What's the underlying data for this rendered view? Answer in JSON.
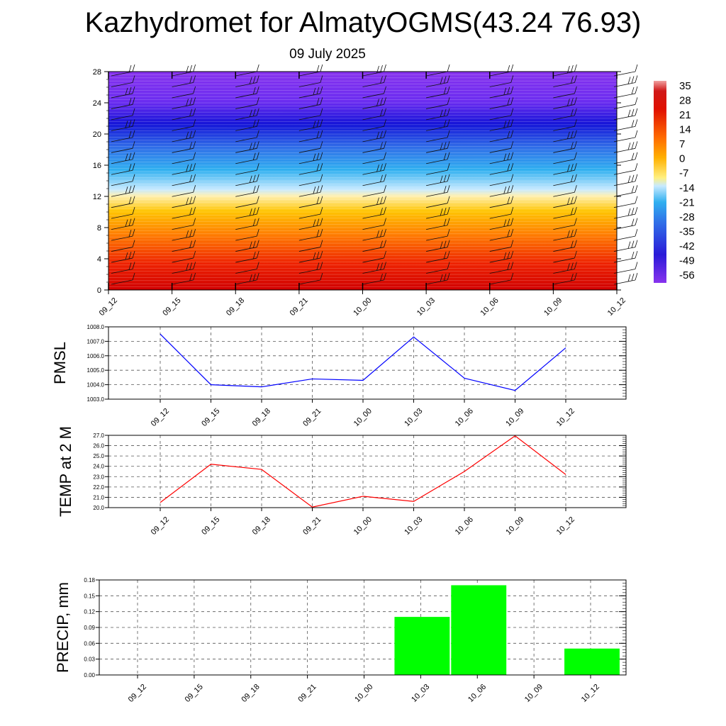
{
  "header": {
    "title": "Kazhydromet for AlmatyOGMS(43.24 76.93)",
    "subtitle": "09 July 2025"
  },
  "colors": {
    "pmsl_line": "#0000ff",
    "temp_line": "#ff0000",
    "precip_bar": "#00ff00"
  },
  "chart_data": [
    {
      "type": "heatmap",
      "title": "",
      "x": [
        "09_12",
        "09_15",
        "09_18",
        "09_21",
        "10_00",
        "10_03",
        "10_06",
        "10_09",
        "10_12"
      ],
      "ylim": [
        0,
        28
      ],
      "yticks": [
        0,
        4,
        8,
        12,
        16,
        20,
        24,
        28
      ],
      "colorbar": {
        "labels": [
          "35",
          "28",
          "21",
          "14",
          "7",
          "0",
          "-7",
          "-14",
          "-21",
          "-28",
          "-35",
          "-42",
          "-49",
          "-56"
        ]
      },
      "overlays": "wind barbs"
    },
    {
      "type": "line",
      "ylabel": "PMSL",
      "x": [
        "09_12",
        "09_15",
        "09_18",
        "09_21",
        "10_00",
        "10_03",
        "10_06",
        "10_09",
        "10_12"
      ],
      "values": [
        1007.5,
        1004.0,
        1003.85,
        1004.4,
        1004.3,
        1007.3,
        1004.45,
        1003.6,
        1006.55
      ],
      "ylim": [
        1003.0,
        1008.0
      ],
      "yticks": [
        "1003.0",
        "1004.0",
        "1005.0",
        "1006.0",
        "1007.0",
        "1008.0"
      ],
      "grid": true
    },
    {
      "type": "line",
      "ylabel": "TEMP at 2 M",
      "x": [
        "09_12",
        "09_15",
        "09_18",
        "09_21",
        "10_00",
        "10_03",
        "10_06",
        "10_09",
        "10_12"
      ],
      "values": [
        20.5,
        24.2,
        23.7,
        20.05,
        21.1,
        20.6,
        23.5,
        26.95,
        23.2
      ],
      "ylim": [
        20.0,
        27.0
      ],
      "yticks": [
        "20.0",
        "21.0",
        "22.0",
        "23.0",
        "24.0",
        "25.0",
        "26.0",
        "27.0"
      ],
      "grid": true
    },
    {
      "type": "bar",
      "ylabel": "PRECIP, mm",
      "categories": [
        "09_12",
        "09_15",
        "09_18",
        "09_21",
        "10_00",
        "10_03",
        "10_06",
        "10_09",
        "10_12"
      ],
      "values": [
        0,
        0,
        0,
        0,
        0,
        0.11,
        0.17,
        0,
        0.05
      ],
      "ylim": [
        0,
        0.18
      ],
      "yticks": [
        "0.00",
        "0.03",
        "0.06",
        "0.09",
        "0.12",
        "0.15",
        "0.18"
      ],
      "grid": true
    }
  ]
}
